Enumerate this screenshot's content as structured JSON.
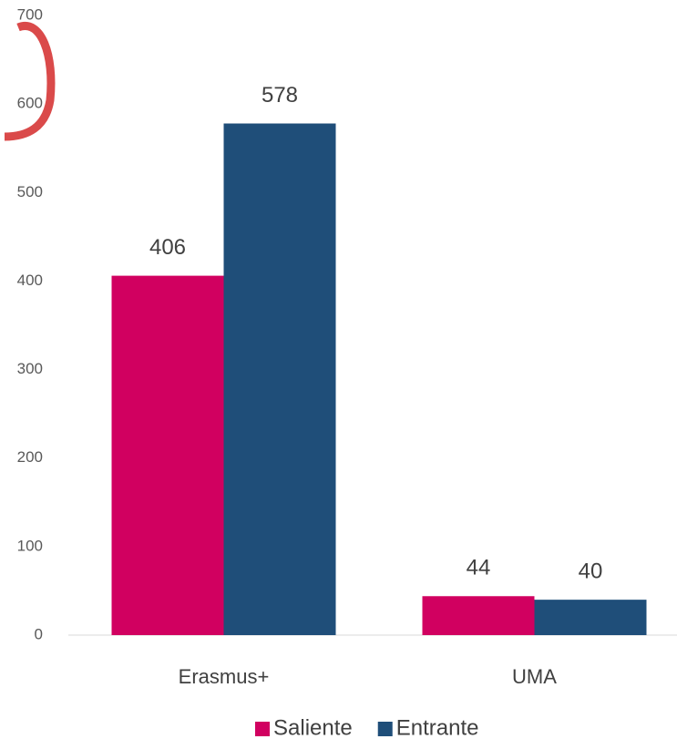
{
  "chart_data": {
    "type": "bar",
    "categories": [
      "Erasmus+",
      "UMA"
    ],
    "series": [
      {
        "name": "Saliente",
        "color": "#d10060",
        "values": [
          406,
          44
        ]
      },
      {
        "name": "Entrante",
        "color": "#1f4e79",
        "values": [
          578,
          40
        ]
      }
    ],
    "ylim": [
      0,
      700
    ],
    "yticks": [
      0,
      100,
      200,
      300,
      400,
      500,
      600,
      700
    ],
    "grid": false,
    "legend": "bottom",
    "data_labels": true
  }
}
